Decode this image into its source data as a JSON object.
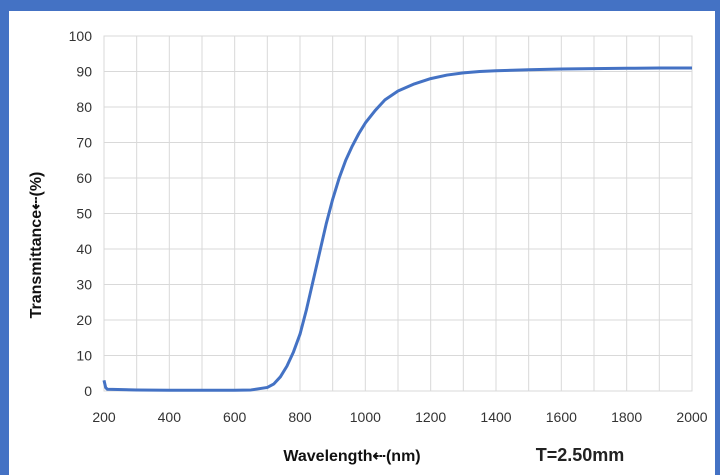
{
  "chart_data": {
    "type": "line",
    "xlabel": "Wavelength⇠(nm)",
    "ylabel": "Transmittance⇠(%)",
    "annotation": "T=2.50mm",
    "xlim": [
      200,
      2000
    ],
    "ylim": [
      0,
      100
    ],
    "x_ticks": [
      200,
      400,
      600,
      800,
      1000,
      1200,
      1400,
      1600,
      1800,
      2000
    ],
    "y_ticks": [
      0,
      10,
      20,
      30,
      40,
      50,
      60,
      70,
      80,
      90,
      100
    ],
    "grid": true,
    "colors": {
      "series": "#4472c4",
      "grid": "#d9d9d9",
      "frame": "#4472c4"
    },
    "series": [
      {
        "x": [
          200,
          205,
          210,
          300,
          400,
          500,
          600,
          650,
          700,
          720,
          740,
          760,
          780,
          800,
          820,
          840,
          860,
          880,
          900,
          920,
          940,
          960,
          980,
          1000,
          1030,
          1060,
          1100,
          1150,
          1200,
          1250,
          1300,
          1350,
          1400,
          1500,
          1600,
          1700,
          1800,
          1900,
          2000
        ],
        "y": [
          3,
          1,
          0.5,
          0.3,
          0.2,
          0.2,
          0.2,
          0.3,
          1,
          2,
          4,
          7,
          11,
          16,
          23,
          31,
          39,
          47,
          54,
          60,
          65,
          69,
          72.5,
          75.5,
          79,
          82,
          84.5,
          86.5,
          88,
          89,
          89.6,
          90,
          90.2,
          90.5,
          90.7,
          90.8,
          90.9,
          91,
          91
        ]
      }
    ]
  }
}
